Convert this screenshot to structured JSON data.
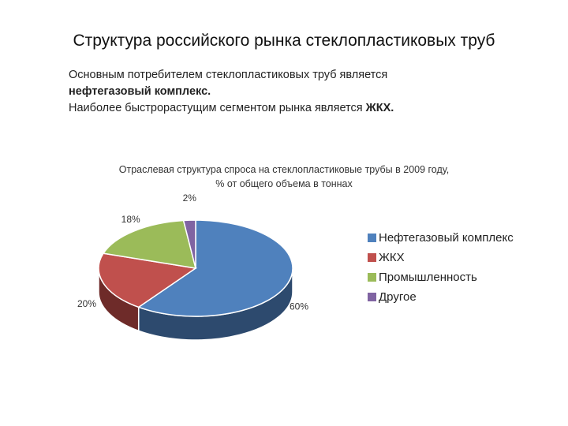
{
  "slide": {
    "title": "Структура российского рынка стеклопластиковых труб"
  },
  "intro": {
    "line1": "Основным потребителем стеклопластиковых труб является",
    "line2_bold": "нефтегазовый комплекс.",
    "line3_text": "Наиболее быстрорастущим сегментом рынка является ",
    "line3_bold": "ЖКХ."
  },
  "chart_data": {
    "type": "pie",
    "title_line1": "Отраслевая структура спроса на стеклопластиковые трубы в 2009 году,",
    "title_line2": "% от общего объема в тоннах",
    "three_d": true,
    "legend_position": "right",
    "slices": [
      {
        "name": "Нефтегазовый комплекс",
        "value": 60,
        "label": "60%",
        "color": "#4f81bd",
        "side_color": "#2d4a6e"
      },
      {
        "name": "ЖКХ",
        "value": 20,
        "label": "20%",
        "color": "#c0504d",
        "side_color": "#6e2b29"
      },
      {
        "name": "Промышленность",
        "value": 18,
        "label": "18%",
        "color": "#9bbb59",
        "side_color": "#5a6e33"
      },
      {
        "name": "Другое",
        "value": 2,
        "label": "2%",
        "color": "#8064a2",
        "side_color": "#4a3a5e"
      }
    ]
  }
}
